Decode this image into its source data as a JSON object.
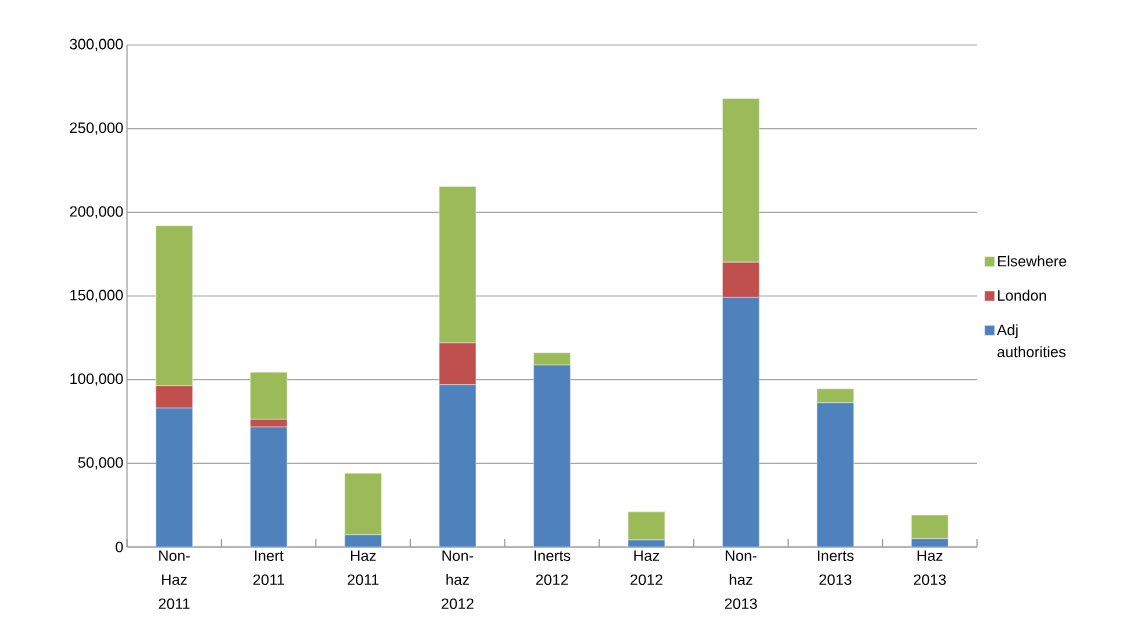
{
  "chart_data": {
    "type": "bar",
    "stacked": true,
    "categories": [
      "Non-Haz 2011",
      "Inert 2011",
      "Haz 2011",
      "Non-haz 2012",
      "Inerts 2012",
      "Haz 2012",
      "Non-haz 2013",
      "Inerts 2013",
      "Haz 2013"
    ],
    "series": [
      {
        "name": "Adj authorities",
        "color": "#4f81bd",
        "values": [
          83000,
          71700,
          7300,
          97000,
          108700,
          4200,
          149200,
          86200,
          5000
        ]
      },
      {
        "name": "London",
        "color": "#c0504d",
        "values": [
          13400,
          4600,
          null,
          25000,
          null,
          null,
          21000,
          null,
          null
        ]
      },
      {
        "name": "Elsewhere",
        "color": "#9bbb59",
        "values": [
          95600,
          28200,
          36800,
          93500,
          7400,
          16800,
          97800,
          8300,
          14100
        ]
      }
    ],
    "ylim": [
      0,
      300000
    ],
    "yticks": [
      {
        "value": 0,
        "label": "0"
      },
      {
        "value": 50000,
        "label": "50,000"
      },
      {
        "value": 100000,
        "label": "100,000"
      },
      {
        "value": 150000,
        "label": "150,000"
      },
      {
        "value": 200000,
        "label": "200,000"
      },
      {
        "value": 250000,
        "label": "250,000"
      },
      {
        "value": 300000,
        "label": "300,000"
      }
    ],
    "grid": "y",
    "legend": "right"
  }
}
